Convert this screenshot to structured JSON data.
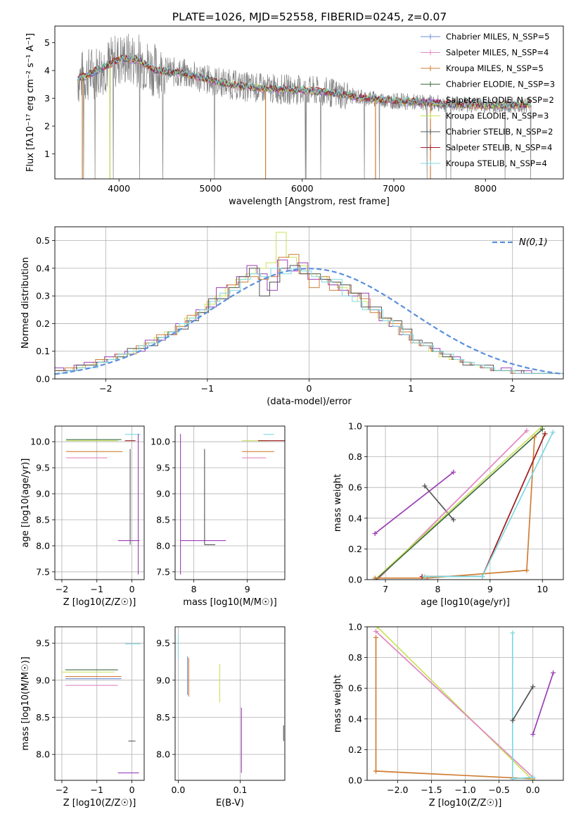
{
  "title": "PLATE=1026, MJD=52558, FIBERID=0245, z=0.07",
  "palette": {
    "Chabrier MILES": "#6c8ed4",
    "Salpeter MILES": "#e087c0",
    "Kroupa MILES": "#cf7e35",
    "Chabrier ELODIE": "#3f6b3f",
    "Salpeter ELODIE": "#9b3fb5",
    "Kroupa ELODIE": "#c8e35a",
    "Chabrier STELIB": "#555555",
    "Salpeter STELIB": "#a01a1a",
    "Kroupa STELIB": "#7ed8e0",
    "data": "#808080",
    "grid": "#b0b0b0"
  },
  "chart_data": [
    {
      "id": "spectrum",
      "type": "line",
      "xlabel": "wavelength [Angstrom, rest frame]",
      "ylabel": "Flux [fλ10⁻¹⁷ erg cm⁻² s⁻¹ A⁻¹]",
      "xlim": [
        3300,
        8850
      ],
      "ylim": [
        0.1,
        5.6
      ],
      "xticks": [
        4000,
        5000,
        6000,
        7000,
        8000
      ],
      "yticks": [
        1,
        2,
        3,
        4,
        5
      ],
      "grid": false,
      "legend_position": "top-right",
      "legend": [
        "Chabrier MILES, N_SSP=5",
        "Salpeter MILES, N_SSP=4",
        "Kroupa MILES, N_SSP=5",
        "Chabrier ELODIE, N_SSP=3",
        "Salpeter ELODIE, N_SSP=2",
        "Kroupa ELODIE, N_SSP=3",
        "Chabrier STELIB, N_SSP=2",
        "Salpeter STELIB, N_SSP=4",
        "Kroupa STELIB, N_SSP=4"
      ],
      "continuum": {
        "x": [
          3550,
          3700,
          3850,
          4000,
          4200,
          4400,
          4700,
          5000,
          5300,
          5600,
          6000,
          6300,
          6600,
          7000,
          7300,
          7600,
          8000,
          8300,
          8500
        ],
        "y": [
          3.7,
          3.9,
          4.15,
          4.4,
          4.4,
          4.0,
          3.9,
          3.65,
          3.45,
          3.35,
          3.3,
          3.2,
          3.05,
          2.9,
          2.85,
          2.8,
          2.75,
          2.75,
          2.8
        ]
      },
      "spikes": [
        {
          "x": 3600,
          "y": 0.1,
          "series": "Kroupa MILES"
        },
        {
          "x": 3900,
          "y": 0.1,
          "series": "Kroupa ELODIE"
        },
        {
          "x": 5600,
          "y": 0.1,
          "series": "Kroupa MILES"
        },
        {
          "x": 6800,
          "y": 0.1,
          "series": "Kroupa MILES"
        },
        {
          "x": 7400,
          "y": 0.1,
          "series": "Kroupa MILES"
        }
      ]
    },
    {
      "id": "residual-histogram",
      "type": "line",
      "xlabel": "(data-model)/error",
      "ylabel": "Normed distribution",
      "xlim": [
        -2.5,
        2.5
      ],
      "ylim": [
        0,
        0.55
      ],
      "xticks": [
        -2,
        -1,
        0,
        1,
        2
      ],
      "yticks": [
        0.0,
        0.1,
        0.2,
        0.3,
        0.4,
        0.5
      ],
      "grid": true,
      "legend_position": "top-right",
      "legend": [
        "N(0,1)"
      ],
      "bin_width": 0.1,
      "series": [
        {
          "name": "Kroupa ELODIE",
          "values": [
            0.03,
            0.03,
            0.04,
            0.05,
            0.06,
            0.07,
            0.08,
            0.09,
            0.11,
            0.13,
            0.15,
            0.17,
            0.19,
            0.22,
            0.24,
            0.27,
            0.3,
            0.33,
            0.36,
            0.38,
            0.4,
            0.42,
            0.53,
            0.44,
            0.41,
            0.38,
            0.37,
            0.35,
            0.33,
            0.31,
            0.28,
            0.25,
            0.22,
            0.19,
            0.16,
            0.14,
            0.12,
            0.1,
            0.08,
            0.07,
            0.06,
            0.05,
            0.04,
            0.03,
            0.03,
            0.02,
            0.02,
            0.02,
            0.02,
            0.02
          ]
        },
        {
          "name": "Salpeter ELODIE",
          "values": [
            0.04,
            0.03,
            0.05,
            0.06,
            0.06,
            0.08,
            0.09,
            0.1,
            0.1,
            0.14,
            0.14,
            0.16,
            0.2,
            0.21,
            0.25,
            0.26,
            0.33,
            0.34,
            0.37,
            0.41,
            0.38,
            0.32,
            0.43,
            0.39,
            0.42,
            0.36,
            0.36,
            0.34,
            0.32,
            0.3,
            0.31,
            0.25,
            0.21,
            0.19,
            0.16,
            0.14,
            0.12,
            0.11,
            0.09,
            0.08,
            0.06,
            0.05,
            0.04,
            0.03,
            0.04,
            0.02,
            0.03,
            0.02,
            0.02,
            0.02
          ]
        },
        {
          "name": "Kroupa MILES",
          "values": [
            0.03,
            0.04,
            0.04,
            0.05,
            0.07,
            0.07,
            0.09,
            0.09,
            0.12,
            0.13,
            0.16,
            0.16,
            0.19,
            0.23,
            0.24,
            0.28,
            0.29,
            0.34,
            0.35,
            0.37,
            0.36,
            0.37,
            0.44,
            0.45,
            0.38,
            0.33,
            0.37,
            0.32,
            0.34,
            0.31,
            0.29,
            0.24,
            0.22,
            0.2,
            0.17,
            0.13,
            0.12,
            0.1,
            0.09,
            0.07,
            0.06,
            0.05,
            0.04,
            0.03,
            0.03,
            0.02,
            0.02,
            0.02,
            0.02,
            0.02
          ]
        },
        {
          "name": "Chabrier STELIB",
          "values": [
            0.03,
            0.03,
            0.05,
            0.05,
            0.06,
            0.07,
            0.08,
            0.11,
            0.11,
            0.12,
            0.15,
            0.17,
            0.18,
            0.21,
            0.24,
            0.29,
            0.29,
            0.33,
            0.37,
            0.4,
            0.3,
            0.35,
            0.4,
            0.41,
            0.38,
            0.38,
            0.36,
            0.35,
            0.34,
            0.31,
            0.26,
            0.26,
            0.22,
            0.21,
            0.18,
            0.14,
            0.13,
            0.1,
            0.08,
            0.07,
            0.05,
            0.05,
            0.05,
            0.03,
            0.03,
            0.03,
            0.02,
            0.02,
            0.02,
            0.02
          ]
        },
        {
          "name": "Kroupa STELIB",
          "values": [
            0.02,
            0.03,
            0.04,
            0.04,
            0.06,
            0.07,
            0.09,
            0.1,
            0.12,
            0.13,
            0.15,
            0.17,
            0.2,
            0.22,
            0.25,
            0.28,
            0.31,
            0.32,
            0.36,
            0.38,
            0.37,
            0.4,
            0.38,
            0.4,
            0.39,
            0.37,
            0.35,
            0.36,
            0.3,
            0.28,
            0.25,
            0.25,
            0.21,
            0.19,
            0.16,
            0.13,
            0.12,
            0.1,
            0.09,
            0.07,
            0.06,
            0.05,
            0.04,
            0.03,
            0.03,
            0.02,
            0.02,
            0.02,
            0.02,
            0.02
          ]
        }
      ],
      "gaussian": {
        "name": "N(0,1)",
        "mean": 0,
        "sigma": 1
      }
    },
    {
      "id": "age-vs-z",
      "type": "scatter",
      "xlabel": "Z [log10(Z/Z☉)]",
      "ylabel": "age [log10(age/yr)]",
      "xlim": [
        -2.2,
        0.35
      ],
      "ylim": [
        7.35,
        10.3
      ],
      "xticks": [
        -2,
        -1,
        0
      ],
      "yticks": [
        7.5,
        8.0,
        8.5,
        9.0,
        9.5,
        10.0
      ],
      "grid": true,
      "errorbars": [
        {
          "series": "Kroupa ELODIE",
          "x": [
            -1.88,
            -0.4
          ],
          "y": [
            10.02,
            10.02
          ]
        },
        {
          "series": "Kroupa MILES",
          "x": [
            -1.88,
            -0.27
          ],
          "y": [
            9.81,
            9.81
          ]
        },
        {
          "series": "Salpeter MILES",
          "x": [
            -1.88,
            -0.7
          ],
          "y": [
            9.69,
            9.69
          ]
        },
        {
          "series": "Chabrier ELODIE",
          "x": [
            -1.88,
            -0.3
          ],
          "y": [
            10.04,
            10.04
          ]
        },
        {
          "series": "Salpeter STELIB",
          "x": [
            -0.2,
            0.1
          ],
          "y": [
            10.02,
            10.02
          ]
        },
        {
          "series": "Kroupa STELIB",
          "x": [
            -0.2,
            0.25
          ],
          "y": [
            10.14,
            10.14
          ]
        },
        {
          "series": "Chabrier STELIB",
          "x": [
            -0.05,
            -0.05
          ],
          "y": [
            8.02,
            9.86
          ]
        },
        {
          "series": "Salpeter ELODIE",
          "x": [
            -0.4,
            0.22
          ],
          "y": [
            8.1,
            8.1
          ]
        },
        {
          "series": "Salpeter ELODIE",
          "x": [
            0.18,
            0.18
          ],
          "y": [
            7.45,
            10.15
          ]
        }
      ]
    },
    {
      "id": "age-vs-mass",
      "type": "scatter",
      "xlabel": "mass [log10(M/M☉)]",
      "ylabel": "",
      "xlim": [
        7.65,
        9.7
      ],
      "ylim": [
        7.35,
        10.3
      ],
      "xticks": [
        8,
        9
      ],
      "yticks": [
        7.5,
        8.0,
        8.5,
        9.0,
        9.5,
        10.0
      ],
      "grid": true,
      "errorbars": [
        {
          "series": "Salpeter ELODIE",
          "x": [
            7.75,
            7.75
          ],
          "y": [
            7.45,
            10.15
          ]
        },
        {
          "series": "Salpeter ELODIE",
          "x": [
            7.75,
            8.6
          ],
          "y": [
            8.1,
            8.1
          ]
        },
        {
          "series": "Chabrier STELIB",
          "x": [
            8.2,
            8.2
          ],
          "y": [
            8.02,
            9.86
          ]
        },
        {
          "series": "Chabrier STELIB",
          "x": [
            8.2,
            8.4
          ],
          "y": [
            8.02,
            8.02
          ]
        },
        {
          "series": "Kroupa ELODIE",
          "x": [
            8.9,
            9.35
          ],
          "y": [
            10.02,
            10.02
          ]
        },
        {
          "series": "Kroupa MILES",
          "x": [
            8.9,
            9.5
          ],
          "y": [
            9.81,
            9.81
          ]
        },
        {
          "series": "Salpeter MILES",
          "x": [
            8.9,
            9.35
          ],
          "y": [
            9.69,
            9.69
          ]
        },
        {
          "series": "Salpeter STELIB",
          "x": [
            9.2,
            9.7
          ],
          "y": [
            10.02,
            10.02
          ]
        },
        {
          "series": "Kroupa STELIB",
          "x": [
            9.3,
            9.5
          ],
          "y": [
            10.14,
            10.14
          ]
        }
      ]
    },
    {
      "id": "weight-vs-age",
      "type": "line",
      "xlabel": "age [log10(age/yr)]",
      "ylabel": "mass weight",
      "xlim": [
        6.65,
        10.4
      ],
      "ylim": [
        0,
        1
      ],
      "xticks": [
        7,
        8,
        9,
        10
      ],
      "yticks": [
        0.0,
        0.2,
        0.4,
        0.6,
        0.8,
        1.0
      ],
      "grid": true,
      "series": [
        {
          "name": "Salpeter ELODIE",
          "x": [
            6.8,
            8.3
          ],
          "y": [
            0.3,
            0.7
          ]
        },
        {
          "name": "Chabrier STELIB",
          "x": [
            7.75,
            8.3
          ],
          "y": [
            0.61,
            0.39
          ]
        },
        {
          "name": "Salpeter MILES",
          "x": [
            6.85,
            9.7
          ],
          "y": [
            0.0,
            0.97
          ]
        },
        {
          "name": "Kroupa ELODIE",
          "x": [
            6.8,
            10.0
          ],
          "y": [
            0.0,
            1.0
          ]
        },
        {
          "name": "Chabrier ELODIE",
          "x": [
            6.82,
            10.0
          ],
          "y": [
            0.0,
            0.98
          ]
        },
        {
          "name": "Kroupa MILES",
          "x": [
            6.8,
            7.8,
            9.7,
            9.85
          ],
          "y": [
            0.01,
            0.01,
            0.06,
            0.93
          ]
        },
        {
          "name": "Salpeter STELIB",
          "x": [
            7.7,
            8.85,
            10.05
          ],
          "y": [
            0.02,
            0.02,
            0.95
          ]
        },
        {
          "name": "Kroupa STELIB",
          "x": [
            7.75,
            8.85,
            10.2
          ],
          "y": [
            0.02,
            0.02,
            0.96
          ]
        }
      ]
    },
    {
      "id": "mass-vs-z",
      "type": "scatter",
      "xlabel": "Z [log10(Z/Z☉)]",
      "ylabel": "mass [log10(M/M☉)]",
      "xlim": [
        -2.2,
        0.35
      ],
      "ylim": [
        7.65,
        9.72
      ],
      "xticks": [
        -2,
        -1,
        0
      ],
      "yticks": [
        8.0,
        8.5,
        9.0,
        9.5
      ],
      "grid": true,
      "errorbars": [
        {
          "series": "Chabrier ELODIE",
          "x": [
            -1.9,
            -0.4
          ],
          "y": [
            9.14,
            9.14
          ]
        },
        {
          "series": "Kroupa ELODIE",
          "x": [
            -2.0,
            -0.5
          ],
          "y": [
            9.11,
            9.11
          ]
        },
        {
          "series": "Kroupa MILES",
          "x": [
            -1.9,
            -0.3
          ],
          "y": [
            9.05,
            9.05
          ]
        },
        {
          "series": "Chabrier MILES",
          "x": [
            -1.9,
            -0.3
          ],
          "y": [
            9.02,
            9.02
          ]
        },
        {
          "series": "Salpeter MILES",
          "x": [
            -1.9,
            -0.4
          ],
          "y": [
            8.93,
            8.93
          ]
        },
        {
          "series": "Kroupa STELIB",
          "x": [
            -0.2,
            0.25
          ],
          "y": [
            9.49,
            9.49
          ]
        },
        {
          "series": "Chabrier STELIB",
          "x": [
            -0.1,
            0.1
          ],
          "y": [
            8.18,
            8.18
          ]
        },
        {
          "series": "Salpeter ELODIE",
          "x": [
            -0.4,
            0.2
          ],
          "y": [
            7.75,
            7.75
          ]
        }
      ]
    },
    {
      "id": "mass-vs-ebv",
      "type": "scatter",
      "xlabel": "E(B-V)",
      "ylabel": "",
      "xlim": [
        -0.005,
        0.172
      ],
      "ylim": [
        7.65,
        9.72
      ],
      "xticks": [
        0.0,
        0.1
      ],
      "yticks": [
        8.0,
        8.5,
        9.0,
        9.5
      ],
      "grid": true,
      "errorbars": [
        {
          "series": "Kroupa STELIB",
          "x": [
            0.0,
            0.0
          ],
          "y": [
            9.28,
            9.62
          ]
        },
        {
          "series": "Chabrier MILES",
          "x": [
            0.015,
            0.015
          ],
          "y": [
            8.8,
            9.32
          ]
        },
        {
          "series": "Kroupa MILES",
          "x": [
            0.017,
            0.017
          ],
          "y": [
            8.78,
            9.3
          ]
        },
        {
          "series": "Kroupa ELODIE",
          "x": [
            0.067,
            0.067
          ],
          "y": [
            8.7,
            9.22
          ]
        },
        {
          "series": "Salpeter ELODIE",
          "x": [
            0.102,
            0.102
          ],
          "y": [
            7.75,
            8.63
          ]
        },
        {
          "series": "Chabrier STELIB",
          "x": [
            0.17,
            0.17
          ],
          "y": [
            8.18,
            8.39
          ]
        }
      ]
    },
    {
      "id": "weight-vs-z",
      "type": "line",
      "xlabel": "Z [log10(Z/Z☉)]",
      "ylabel": "mass weight",
      "xlim": [
        -2.45,
        0.45
      ],
      "ylim": [
        0,
        1
      ],
      "xticks": [
        -2.0,
        -1.5,
        -1.0,
        -0.5,
        0.0
      ],
      "yticks": [
        0.0,
        0.2,
        0.4,
        0.6,
        0.8,
        1.0
      ],
      "grid": true,
      "series": [
        {
          "name": "Kroupa MILES",
          "x": [
            -2.32,
            -2.32,
            0.0
          ],
          "y": [
            0.93,
            0.06,
            0.01
          ]
        },
        {
          "name": "Kroupa ELODIE",
          "x": [
            -2.3,
            0.0
          ],
          "y": [
            1.0,
            0.0
          ]
        },
        {
          "name": "Salpeter MILES",
          "x": [
            -2.32,
            0.0
          ],
          "y": [
            0.97,
            0.02
          ]
        },
        {
          "name": "Kroupa STELIB",
          "x": [
            -0.3,
            -0.3,
            0.0
          ],
          "y": [
            0.96,
            0.01,
            0.02
          ]
        },
        {
          "name": "Chabrier STELIB",
          "x": [
            -0.3,
            0.0
          ],
          "y": [
            0.39,
            0.61
          ]
        },
        {
          "name": "Salpeter ELODIE",
          "x": [
            0.0,
            0.3
          ],
          "y": [
            0.3,
            0.7
          ]
        }
      ]
    }
  ]
}
